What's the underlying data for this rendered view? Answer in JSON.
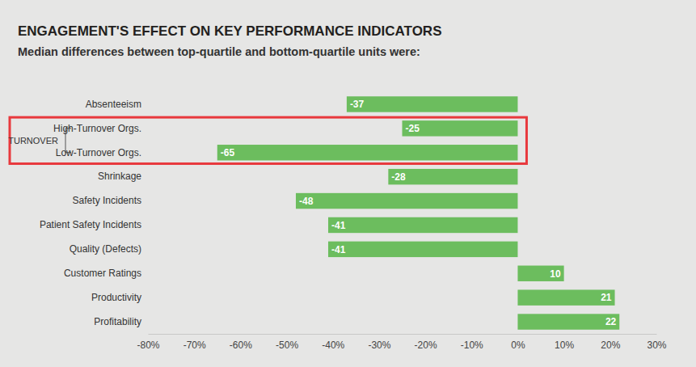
{
  "chart_data": {
    "type": "bar",
    "title": "ENGAGEMENT'S EFFECT ON KEY PERFORMANCE INDICATORS",
    "subtitle": "Median differences between top-quartile and bottom-quartile units were:",
    "orientation": "horizontal",
    "categories": [
      "Absenteeism",
      "High-Turnover Orgs.",
      "Low-Turnover Orgs.",
      "Shrinkage",
      "Safety Incidents",
      "Patient Safety Incidents",
      "Quality (Defects)",
      "Customer Ratings",
      "Productivity",
      "Profitability"
    ],
    "values": [
      -37,
      -25,
      -65,
      -28,
      -48,
      -41,
      -41,
      10,
      21,
      22
    ],
    "color": "#6cbd5e",
    "data_labels": true,
    "grid": false,
    "xlim": [
      -80,
      30
    ],
    "xticks": [
      {
        "value": -80,
        "label": "-80%"
      },
      {
        "value": -70,
        "label": "-70%"
      },
      {
        "value": -60,
        "label": "-60%"
      },
      {
        "value": -50,
        "label": "-50%"
      },
      {
        "value": -40,
        "label": "-40%"
      },
      {
        "value": -30,
        "label": "-30%"
      },
      {
        "value": -20,
        "label": "-20%"
      },
      {
        "value": -10,
        "label": "-10%"
      },
      {
        "value": 0,
        "label": "0%"
      },
      {
        "value": 10,
        "label": "10%"
      },
      {
        "value": 20,
        "label": "20%"
      },
      {
        "value": 30,
        "label": "30%"
      }
    ],
    "annotations": [
      {
        "text": "TURNOVER",
        "categories": [
          "High-Turnover Orgs.",
          "Low-Turnover Orgs."
        ]
      }
    ]
  }
}
